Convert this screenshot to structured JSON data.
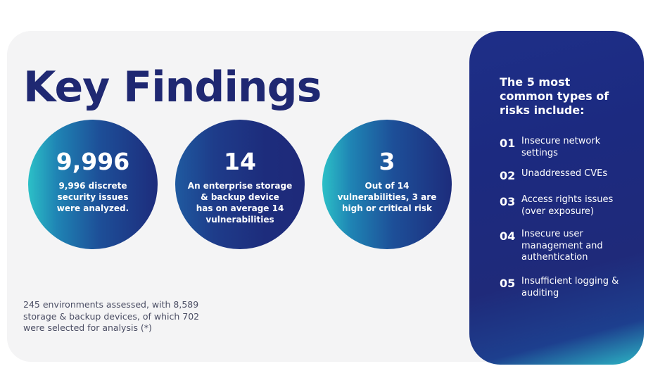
{
  "page": {
    "title": "Key Findings"
  },
  "stats": [
    {
      "value": "9,996",
      "description": "9,996 discrete\nsecurity issues\nwere analyzed."
    },
    {
      "value": "14",
      "description": "An enterprise storage\n& backup device\nhas on average 14\nvulnerabilities"
    },
    {
      "value": "3",
      "description": "Out of 14\nvulnerabilities, 3 are\nhigh or critical risk"
    }
  ],
  "footnote": "245 environments assessed, with 8,589\nstorage & backup devices, of which 702\nwere selected for analysis (*)",
  "risks": {
    "heading": "The 5 most\ncommon types of\nrisks include:",
    "items": [
      {
        "number": "01",
        "label": "Insecure network\nsettings"
      },
      {
        "number": "02",
        "label": "Unaddressed CVEs"
      },
      {
        "number": "03",
        "label": "Access rights issues\n(over exposure)"
      },
      {
        "number": "04",
        "label": "Insecure user\nmanagement and\nauthentication"
      },
      {
        "number": "05",
        "label": "Insufficient logging &\nauditing"
      }
    ]
  },
  "colors": {
    "title": "#1f2872",
    "panel_background": "#f4f4f5",
    "circle_dark": "#1d2c7c",
    "circle_teal": "#2cc0c7",
    "card_dark": "#1e2f88",
    "card_teal": "#2cb6c4",
    "footnote_text": "#4a4d63"
  }
}
